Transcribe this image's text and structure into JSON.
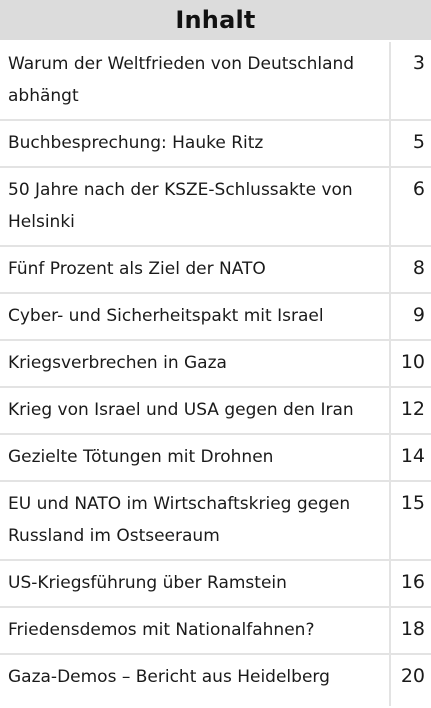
{
  "toc": {
    "title": "Inhalt",
    "items": [
      {
        "title": "Warum der Weltfrieden von Deutschland abhängt",
        "page": "3",
        "lines": 2
      },
      {
        "title": "Buchbesprechung: Hauke Ritz",
        "page": "5",
        "lines": 1
      },
      {
        "title": "50 Jahre nach der KSZE-Schlussakte von Helsinki",
        "page": "6",
        "lines": 2
      },
      {
        "title": "Fünf Prozent als Ziel der NATO",
        "page": "8",
        "lines": 1
      },
      {
        "title": "Cyber- und Sicherheitspakt mit Israel",
        "page": "9",
        "lines": 1
      },
      {
        "title": "Kriegsverbrechen in Gaza",
        "page": "10",
        "lines": 1
      },
      {
        "title": "Krieg von Israel und USA gegen den Iran",
        "page": "12",
        "lines": 1
      },
      {
        "title": "Gezielte Tötungen mit Drohnen",
        "page": "14",
        "lines": 1
      },
      {
        "title": "EU und NATO im Wirtschaftskrieg gegen Russland im Ostseeraum",
        "page": "15",
        "lines": 2
      },
      {
        "title": "US-Kriegsführung über Ramstein",
        "page": "16",
        "lines": 1
      },
      {
        "title": "Friedensdemos mit Nationalfahnen?",
        "page": "18",
        "lines": 1
      },
      {
        "title": "Gaza-Demos – Bericht aus Heidelberg",
        "page": "20",
        "lines": 1
      }
    ]
  }
}
